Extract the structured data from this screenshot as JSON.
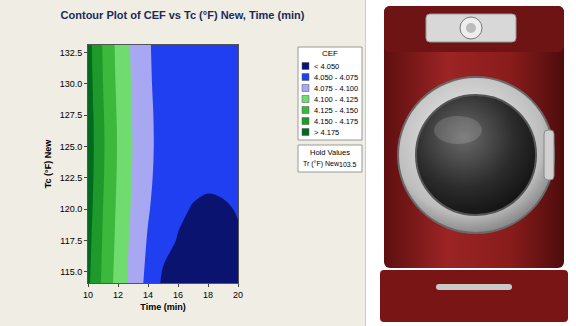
{
  "chart_data": {
    "type": "contour",
    "title": "Contour Plot of CEF vs Tc (°F) New, Time (min)",
    "x_label": "Time (min)",
    "y_label": "Tc (°F) New",
    "x": [
      10,
      11,
      12,
      13,
      14,
      15,
      16,
      17,
      18,
      19,
      20
    ],
    "y": [
      114,
      117.5,
      120,
      122.5,
      125,
      127.5,
      130,
      133.5
    ],
    "z": [
      [
        4.18,
        4.145,
        4.115,
        4.09,
        4.068,
        4.046,
        4.043,
        4.04,
        4.038,
        4.039,
        4.043
      ],
      [
        4.183,
        4.148,
        4.118,
        4.093,
        4.073,
        4.056,
        4.049,
        4.045,
        4.043,
        4.044,
        4.048
      ],
      [
        4.186,
        4.15,
        4.12,
        4.096,
        4.077,
        4.062,
        4.053,
        4.049,
        4.047,
        4.048,
        4.051
      ],
      [
        4.188,
        4.152,
        4.122,
        4.098,
        4.079,
        4.066,
        4.058,
        4.054,
        4.053,
        4.054,
        4.056
      ],
      [
        4.189,
        4.153,
        4.123,
        4.099,
        4.08,
        4.067,
        4.06,
        4.057,
        4.056,
        4.057,
        4.059
      ],
      [
        4.188,
        4.152,
        4.122,
        4.098,
        4.08,
        4.066,
        4.06,
        4.057,
        4.057,
        4.058,
        4.06
      ],
      [
        4.186,
        4.15,
        4.12,
        4.097,
        4.079,
        4.064,
        4.059,
        4.057,
        4.057,
        4.058,
        4.061
      ],
      [
        4.184,
        4.148,
        4.118,
        4.095,
        4.078,
        4.062,
        4.058,
        4.057,
        4.057,
        4.058,
        4.061
      ]
    ],
    "xlim": [
      10,
      20
    ],
    "ylim": [
      114.1,
      133.1
    ],
    "xticks": [
      10,
      12,
      14,
      16,
      18,
      20
    ],
    "yticks": [
      {
        "value": 115,
        "label": "115.0"
      },
      117.5,
      {
        "value": 120,
        "label": "120.0"
      },
      122.5,
      {
        "value": 125,
        "label": "125.0"
      },
      127.5,
      {
        "value": 130,
        "label": "130.0"
      },
      132.5
    ],
    "color_bar": {
      "title": "CEF",
      "levels": [
        4.05,
        4.075,
        4.1,
        4.125,
        4.15,
        4.175
      ],
      "labels": [
        "< 4.050",
        "4.050 - 4.075",
        "4.075 - 4.100",
        "4.100 - 4.125",
        "4.125 - 4.150",
        "4.150 - 4.175",
        "> 4.175"
      ],
      "colors": [
        "#0a1470",
        "#1f3ff0",
        "#a8a8f2",
        "#70dc70",
        "#3cb83c",
        "#1f9a2a",
        "#006b1f"
      ]
    },
    "hold_values": {
      "title": "Hold Values",
      "label": "Tr (°F) New",
      "value": 103.5
    }
  }
}
